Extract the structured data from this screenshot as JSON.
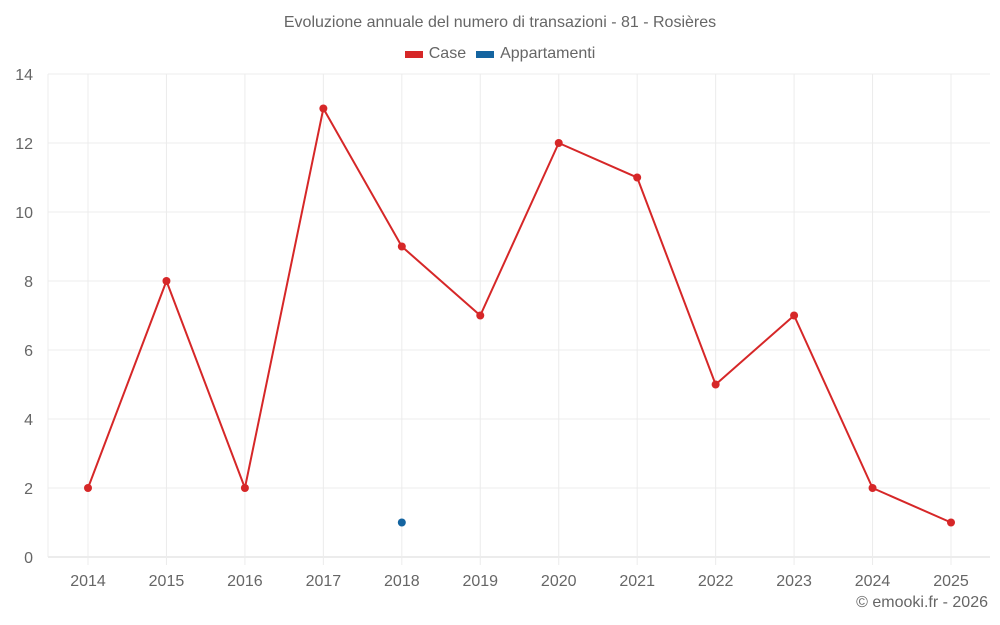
{
  "header": {
    "title": "Evoluzione annuale del numero di transazioni - 81 - Rosières"
  },
  "legend": [
    {
      "label": "Case",
      "color": "#d62728"
    },
    {
      "label": "Appartamenti",
      "color": "#1464a0"
    }
  ],
  "footer": {
    "credit": "© emooki.fr - 2026"
  },
  "chart_data": {
    "type": "line",
    "title": "Evoluzione annuale del numero di transazioni - 81 - Rosières",
    "xlabel": "",
    "ylabel": "",
    "categories": [
      "2014",
      "2015",
      "2016",
      "2017",
      "2018",
      "2019",
      "2020",
      "2021",
      "2022",
      "2023",
      "2024",
      "2025"
    ],
    "series": [
      {
        "name": "Case",
        "color": "#d62728",
        "values": [
          2,
          8,
          2,
          13,
          9,
          7,
          12,
          11,
          5,
          7,
          2,
          1
        ]
      },
      {
        "name": "Appartamenti",
        "color": "#1464a0",
        "values": [
          null,
          null,
          null,
          null,
          1,
          null,
          null,
          null,
          null,
          null,
          null,
          null
        ]
      }
    ],
    "ylim": [
      0,
      14
    ],
    "yticks": [
      0,
      2,
      4,
      6,
      8,
      10,
      12,
      14
    ],
    "grid": true,
    "legend_position": "top"
  }
}
